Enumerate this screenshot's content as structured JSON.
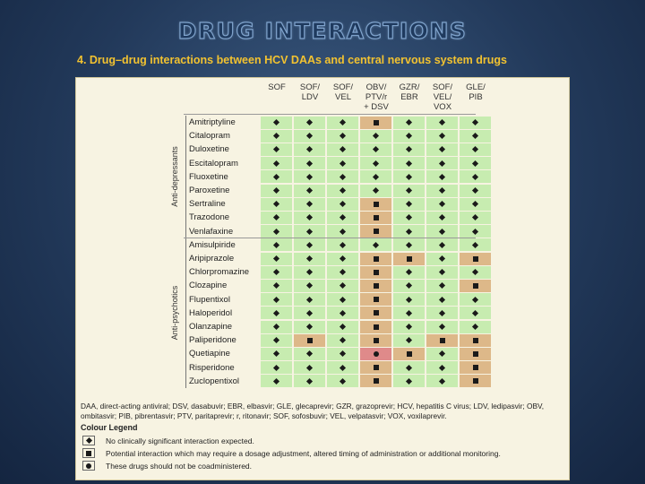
{
  "slide": {
    "title": "DRUG INTERACTIONS",
    "subtitle": "4. Drug–drug interactions between HCV DAAs and central nervous system drugs"
  },
  "table": {
    "columns": [
      {
        "lines": [
          "SOF"
        ]
      },
      {
        "lines": [
          "SOF/",
          "LDV"
        ]
      },
      {
        "lines": [
          "SOF/",
          "VEL"
        ]
      },
      {
        "lines": [
          "OBV/",
          "PTV/r",
          "+ DSV"
        ]
      },
      {
        "lines": [
          "GZR/",
          "EBR"
        ]
      },
      {
        "lines": [
          "SOF/",
          "VEL/",
          "VOX"
        ]
      },
      {
        "lines": [
          "GLE/",
          "PIB"
        ]
      }
    ],
    "groups": [
      {
        "label": "Anti-depressants",
        "drugs": [
          {
            "name": "Amitriptyline",
            "cells": [
              "G",
              "G",
              "G",
              "A",
              "G",
              "G",
              "G"
            ]
          },
          {
            "name": "Citalopram",
            "cells": [
              "G",
              "G",
              "G",
              "G",
              "G",
              "G",
              "G"
            ]
          },
          {
            "name": "Duloxetine",
            "cells": [
              "G",
              "G",
              "G",
              "G",
              "G",
              "G",
              "G"
            ]
          },
          {
            "name": "Escitalopram",
            "cells": [
              "G",
              "G",
              "G",
              "G",
              "G",
              "G",
              "G"
            ]
          },
          {
            "name": "Fluoxetine",
            "cells": [
              "G",
              "G",
              "G",
              "G",
              "G",
              "G",
              "G"
            ]
          },
          {
            "name": "Paroxetine",
            "cells": [
              "G",
              "G",
              "G",
              "G",
              "G",
              "G",
              "G"
            ]
          },
          {
            "name": "Sertraline",
            "cells": [
              "G",
              "G",
              "G",
              "A",
              "G",
              "G",
              "G"
            ]
          },
          {
            "name": "Trazodone",
            "cells": [
              "G",
              "G",
              "G",
              "A",
              "G",
              "G",
              "G"
            ]
          },
          {
            "name": "Venlafaxine",
            "cells": [
              "G",
              "G",
              "G",
              "A",
              "G",
              "G",
              "G"
            ]
          }
        ]
      },
      {
        "label": "Anti-psychotics",
        "drugs": [
          {
            "name": "Amisulpiride",
            "cells": [
              "G",
              "G",
              "G",
              "G",
              "G",
              "G",
              "G"
            ]
          },
          {
            "name": "Aripiprazole",
            "cells": [
              "G",
              "G",
              "G",
              "A",
              "A",
              "G",
              "A"
            ]
          },
          {
            "name": "Chlorpromazine",
            "cells": [
              "G",
              "G",
              "G",
              "A",
              "G",
              "G",
              "G"
            ]
          },
          {
            "name": "Clozapine",
            "cells": [
              "G",
              "G",
              "G",
              "A",
              "G",
              "G",
              "A"
            ]
          },
          {
            "name": "Flupentixol",
            "cells": [
              "G",
              "G",
              "G",
              "A",
              "G",
              "G",
              "G"
            ]
          },
          {
            "name": "Haloperidol",
            "cells": [
              "G",
              "G",
              "G",
              "A",
              "G",
              "G",
              "G"
            ]
          },
          {
            "name": "Olanzapine",
            "cells": [
              "G",
              "G",
              "G",
              "A",
              "G",
              "G",
              "G"
            ]
          },
          {
            "name": "Paliperidone",
            "cells": [
              "G",
              "A",
              "G",
              "A",
              "G",
              "A",
              "A"
            ]
          },
          {
            "name": "Quetiapine",
            "cells": [
              "G",
              "G",
              "G",
              "R",
              "A",
              "G",
              "A"
            ]
          },
          {
            "name": "Risperidone",
            "cells": [
              "G",
              "G",
              "G",
              "A",
              "G",
              "G",
              "A"
            ]
          },
          {
            "name": "Zuclopentixol",
            "cells": [
              "G",
              "G",
              "G",
              "A",
              "G",
              "G",
              "A"
            ]
          }
        ]
      }
    ],
    "colors": {
      "G": "#c7ecb0",
      "A": "#ddb889",
      "R": "#df8a8a"
    },
    "footnote": "DAA, direct-acting antiviral; DSV, dasabuvir; EBR, elbasvir; GLE, glecaprevir; GZR, grazoprevir; HCV, hepatitis C virus; LDV, ledipasvir; OBV, ombitasvir; PIB, pibrentasvir; PTV, paritaprevir; r, ritonavir; SOF, sofosbuvir; VEL, velpatasvir; VOX, voxilaprevir.",
    "legend": {
      "title": "Colour Legend",
      "items": [
        {
          "code": "G",
          "marker": "diamond",
          "text": "No clinically significant interaction expected."
        },
        {
          "code": "A",
          "marker": "square",
          "text": "Potential interaction which may require a dosage adjustment, altered timing of administration or additional monitoring."
        },
        {
          "code": "R",
          "marker": "dot",
          "text": "These drugs should not be coadministered."
        }
      ]
    }
  }
}
